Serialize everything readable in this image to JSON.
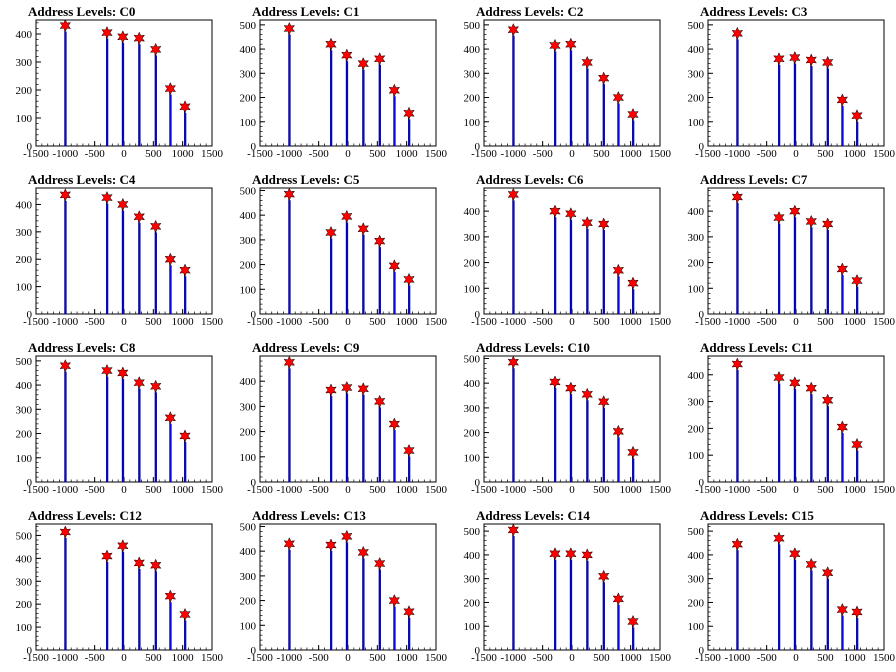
{
  "page": {
    "background": "#ffffff",
    "spike_color": "#0000ff",
    "marker_color": "#ff0000"
  },
  "chart_data": [
    {
      "type": "bar",
      "title": "Address Levels: C0",
      "xlim": [
        -1500,
        1500
      ],
      "ylim": [
        0,
        450
      ],
      "yticks": [
        0,
        100,
        200,
        300,
        400
      ],
      "xticks": [
        -1500,
        -1000,
        -500,
        0,
        500,
        1000,
        1500
      ],
      "xticklabels": [
        "-1500",
        "-1000",
        "-500",
        "0",
        "500",
        "1000",
        "1500"
      ],
      "peaks": [
        {
          "x": -1000,
          "y": 430
        },
        {
          "x": -290,
          "y": 405
        },
        {
          "x": -20,
          "y": 390
        },
        {
          "x": 260,
          "y": 385
        },
        {
          "x": 540,
          "y": 345
        },
        {
          "x": 790,
          "y": 205
        },
        {
          "x": 1040,
          "y": 140
        }
      ]
    },
    {
      "type": "bar",
      "title": "Address Levels: C1",
      "xlim": [
        -1500,
        1500
      ],
      "ylim": [
        0,
        520
      ],
      "yticks": [
        0,
        100,
        200,
        300,
        400,
        500
      ],
      "xticks": [
        -1500,
        -1000,
        -500,
        0,
        500,
        1000,
        1500
      ],
      "xticklabels": [
        "-1500",
        "-1000",
        "-500",
        "0",
        "500",
        "1000",
        "1500"
      ],
      "peaks": [
        {
          "x": -1000,
          "y": 485
        },
        {
          "x": -290,
          "y": 420
        },
        {
          "x": -20,
          "y": 375
        },
        {
          "x": 260,
          "y": 340
        },
        {
          "x": 540,
          "y": 360
        },
        {
          "x": 790,
          "y": 230
        },
        {
          "x": 1040,
          "y": 135
        }
      ]
    },
    {
      "type": "bar",
      "title": "Address Levels: C2",
      "xlim": [
        -1500,
        1500
      ],
      "ylim": [
        0,
        520
      ],
      "yticks": [
        0,
        100,
        200,
        300,
        400,
        500
      ],
      "xticks": [
        -1500,
        -1000,
        -500,
        0,
        500,
        1000,
        1500
      ],
      "xticklabels": [
        "-1500",
        "-1000",
        "-500",
        "0",
        "500",
        "1000",
        "1500"
      ],
      "peaks": [
        {
          "x": -1000,
          "y": 480
        },
        {
          "x": -290,
          "y": 415
        },
        {
          "x": -20,
          "y": 420
        },
        {
          "x": 260,
          "y": 345
        },
        {
          "x": 540,
          "y": 280
        },
        {
          "x": 790,
          "y": 200
        },
        {
          "x": 1040,
          "y": 130
        }
      ]
    },
    {
      "type": "bar",
      "title": "Address Levels: C3",
      "xlim": [
        -1500,
        1500
      ],
      "ylim": [
        0,
        520
      ],
      "yticks": [
        0,
        100,
        200,
        300,
        400,
        500
      ],
      "xticks": [
        -1500,
        -1000,
        -500,
        0,
        500,
        1000,
        1500
      ],
      "xticklabels": [
        "-1500",
        "-1000",
        "-500",
        "0",
        "500",
        "1000",
        "1500"
      ],
      "peaks": [
        {
          "x": -1000,
          "y": 465
        },
        {
          "x": -290,
          "y": 360
        },
        {
          "x": -20,
          "y": 365
        },
        {
          "x": 260,
          "y": 355
        },
        {
          "x": 540,
          "y": 345
        },
        {
          "x": 790,
          "y": 190
        },
        {
          "x": 1040,
          "y": 125
        }
      ]
    },
    {
      "type": "bar",
      "title": "Address Levels: C4",
      "xlim": [
        -1500,
        1500
      ],
      "ylim": [
        0,
        460
      ],
      "yticks": [
        0,
        100,
        200,
        300,
        400
      ],
      "xticks": [
        -1500,
        -1000,
        -500,
        0,
        500,
        1000,
        1500
      ],
      "xticklabels": [
        "-1500",
        "-1000",
        "-500",
        "0",
        "500",
        "1000",
        "1500"
      ],
      "peaks": [
        {
          "x": -1000,
          "y": 435
        },
        {
          "x": -290,
          "y": 425
        },
        {
          "x": -20,
          "y": 400
        },
        {
          "x": 260,
          "y": 355
        },
        {
          "x": 540,
          "y": 320
        },
        {
          "x": 790,
          "y": 200
        },
        {
          "x": 1040,
          "y": 160
        }
      ]
    },
    {
      "type": "bar",
      "title": "Address Levels: C5",
      "xlim": [
        -1500,
        1500
      ],
      "ylim": [
        0,
        510
      ],
      "yticks": [
        0,
        100,
        200,
        300,
        400,
        500
      ],
      "xticks": [
        -1500,
        -1000,
        -500,
        0,
        500,
        1000,
        1500
      ],
      "xticklabels": [
        "-1500",
        "-1000",
        "-500",
        "0",
        "500",
        "1000",
        "1500"
      ],
      "peaks": [
        {
          "x": -1000,
          "y": 485
        },
        {
          "x": -290,
          "y": 330
        },
        {
          "x": -20,
          "y": 395
        },
        {
          "x": 260,
          "y": 345
        },
        {
          "x": 540,
          "y": 295
        },
        {
          "x": 790,
          "y": 195
        },
        {
          "x": 1040,
          "y": 140
        }
      ]
    },
    {
      "type": "bar",
      "title": "Address Levels: C6",
      "xlim": [
        -1500,
        1500
      ],
      "ylim": [
        0,
        490
      ],
      "yticks": [
        0,
        100,
        200,
        300,
        400
      ],
      "xticks": [
        -1500,
        -1000,
        -500,
        0,
        500,
        1000,
        1500
      ],
      "xticklabels": [
        "-1500",
        "-1000",
        "-500",
        "0",
        "500",
        "1000",
        "1500"
      ],
      "peaks": [
        {
          "x": -1000,
          "y": 465
        },
        {
          "x": -290,
          "y": 400
        },
        {
          "x": -20,
          "y": 390
        },
        {
          "x": 260,
          "y": 355
        },
        {
          "x": 540,
          "y": 350
        },
        {
          "x": 790,
          "y": 170
        },
        {
          "x": 1040,
          "y": 120
        }
      ]
    },
    {
      "type": "bar",
      "title": "Address Levels: C7",
      "xlim": [
        -1500,
        1500
      ],
      "ylim": [
        0,
        490
      ],
      "yticks": [
        0,
        100,
        200,
        300,
        400
      ],
      "xticks": [
        -1500,
        -1000,
        -500,
        0,
        500,
        1000,
        1500
      ],
      "xticklabels": [
        "-1500",
        "-1000",
        "-500",
        "0",
        "500",
        "1000",
        "1500"
      ],
      "peaks": [
        {
          "x": -1000,
          "y": 455
        },
        {
          "x": -290,
          "y": 375
        },
        {
          "x": -20,
          "y": 400
        },
        {
          "x": 260,
          "y": 360
        },
        {
          "x": 540,
          "y": 350
        },
        {
          "x": 790,
          "y": 175
        },
        {
          "x": 1040,
          "y": 130
        }
      ]
    },
    {
      "type": "bar",
      "title": "Address Levels: C8",
      "xlim": [
        -1500,
        1500
      ],
      "ylim": [
        0,
        520
      ],
      "yticks": [
        0,
        100,
        200,
        300,
        400,
        500
      ],
      "xticks": [
        -1500,
        -1000,
        -500,
        0,
        500,
        1000,
        1500
      ],
      "xticklabels": [
        "-1500",
        "-1000",
        "-500",
        "0",
        "500",
        "1000",
        "1500"
      ],
      "peaks": [
        {
          "x": -1000,
          "y": 480
        },
        {
          "x": -290,
          "y": 460
        },
        {
          "x": -20,
          "y": 450
        },
        {
          "x": 260,
          "y": 410
        },
        {
          "x": 540,
          "y": 395
        },
        {
          "x": 790,
          "y": 265
        },
        {
          "x": 1040,
          "y": 190
        }
      ]
    },
    {
      "type": "bar",
      "title": "Address Levels: C9",
      "xlim": [
        -1500,
        1500
      ],
      "ylim": [
        0,
        500
      ],
      "yticks": [
        0,
        100,
        200,
        300,
        400
      ],
      "xticks": [
        -1500,
        -1000,
        -500,
        0,
        500,
        1000,
        1500
      ],
      "xticklabels": [
        "-1500",
        "-1000",
        "-500",
        "0",
        "500",
        "1000",
        "1500"
      ],
      "peaks": [
        {
          "x": -1000,
          "y": 475
        },
        {
          "x": -290,
          "y": 365
        },
        {
          "x": -20,
          "y": 375
        },
        {
          "x": 260,
          "y": 370
        },
        {
          "x": 540,
          "y": 320
        },
        {
          "x": 790,
          "y": 230
        },
        {
          "x": 1040,
          "y": 125
        }
      ]
    },
    {
      "type": "bar",
      "title": "Address Levels: C10",
      "xlim": [
        -1500,
        1500
      ],
      "ylim": [
        0,
        510
      ],
      "yticks": [
        0,
        100,
        200,
        300,
        400,
        500
      ],
      "xticks": [
        -1500,
        -1000,
        -500,
        0,
        500,
        1000,
        1500
      ],
      "xticklabels": [
        "-1500",
        "-1000",
        "-500",
        "0",
        "500",
        "1000",
        "1500"
      ],
      "peaks": [
        {
          "x": -1000,
          "y": 485
        },
        {
          "x": -290,
          "y": 405
        },
        {
          "x": -20,
          "y": 380
        },
        {
          "x": 260,
          "y": 355
        },
        {
          "x": 540,
          "y": 325
        },
        {
          "x": 790,
          "y": 205
        },
        {
          "x": 1040,
          "y": 120
        }
      ]
    },
    {
      "type": "bar",
      "title": "Address Levels: C11",
      "xlim": [
        -1500,
        1500
      ],
      "ylim": [
        0,
        470
      ],
      "yticks": [
        0,
        100,
        200,
        300,
        400
      ],
      "xticks": [
        -1500,
        -1000,
        -500,
        0,
        500,
        1000,
        1500
      ],
      "xticklabels": [
        "-1500",
        "-1000",
        "-500",
        "0",
        "500",
        "1000",
        "1500"
      ],
      "peaks": [
        {
          "x": -1000,
          "y": 440
        },
        {
          "x": -290,
          "y": 390
        },
        {
          "x": -20,
          "y": 370
        },
        {
          "x": 260,
          "y": 350
        },
        {
          "x": 540,
          "y": 305
        },
        {
          "x": 790,
          "y": 205
        },
        {
          "x": 1040,
          "y": 140
        }
      ]
    },
    {
      "type": "bar",
      "title": "Address Levels: C12",
      "xlim": [
        -1500,
        1500
      ],
      "ylim": [
        0,
        550
      ],
      "yticks": [
        0,
        100,
        200,
        300,
        400,
        500
      ],
      "xticks": [
        -1500,
        -1000,
        -500,
        0,
        500,
        1000,
        1500
      ],
      "xticklabels": [
        "-1500",
        "-1000",
        "-500",
        "0",
        "500",
        "1000",
        "1500"
      ],
      "peaks": [
        {
          "x": -1000,
          "y": 515
        },
        {
          "x": -290,
          "y": 410
        },
        {
          "x": -20,
          "y": 455
        },
        {
          "x": 260,
          "y": 380
        },
        {
          "x": 540,
          "y": 370
        },
        {
          "x": 790,
          "y": 235
        },
        {
          "x": 1040,
          "y": 155
        }
      ]
    },
    {
      "type": "bar",
      "title": "Address Levels: C13",
      "xlim": [
        -1500,
        1500
      ],
      "ylim": [
        0,
        510
      ],
      "yticks": [
        0,
        100,
        200,
        300,
        400,
        500
      ],
      "xticks": [
        -1500,
        -1000,
        -500,
        0,
        500,
        1000,
        1500
      ],
      "xticklabels": [
        "-1500",
        "-1000",
        "-500",
        "0",
        "500",
        "1000",
        "1500"
      ],
      "peaks": [
        {
          "x": -1000,
          "y": 430
        },
        {
          "x": -290,
          "y": 425
        },
        {
          "x": -20,
          "y": 460
        },
        {
          "x": 260,
          "y": 395
        },
        {
          "x": 540,
          "y": 350
        },
        {
          "x": 790,
          "y": 200
        },
        {
          "x": 1040,
          "y": 155
        }
      ]
    },
    {
      "type": "bar",
      "title": "Address Levels: C14",
      "xlim": [
        -1500,
        1500
      ],
      "ylim": [
        0,
        530
      ],
      "yticks": [
        0,
        100,
        200,
        300,
        400,
        500
      ],
      "xticks": [
        -1500,
        -1000,
        -500,
        0,
        500,
        1000,
        1500
      ],
      "xticklabels": [
        "-1500",
        "-1000",
        "-500",
        "0",
        "500",
        "1000",
        "1500"
      ],
      "peaks": [
        {
          "x": -1000,
          "y": 505
        },
        {
          "x": -290,
          "y": 405
        },
        {
          "x": -20,
          "y": 405
        },
        {
          "x": 260,
          "y": 400
        },
        {
          "x": 540,
          "y": 310
        },
        {
          "x": 790,
          "y": 215
        },
        {
          "x": 1040,
          "y": 120
        }
      ]
    },
    {
      "type": "bar",
      "title": "Address Levels: C15",
      "xlim": [
        -1500,
        1500
      ],
      "ylim": [
        0,
        530
      ],
      "yticks": [
        0,
        100,
        200,
        300,
        400,
        500
      ],
      "xticks": [
        -1500,
        -1000,
        -500,
        0,
        500,
        1000,
        1500
      ],
      "xticklabels": [
        "-1500",
        "-1000",
        "-500",
        "0",
        "500",
        "1000",
        "1500"
      ],
      "peaks": [
        {
          "x": -1000,
          "y": 445
        },
        {
          "x": -290,
          "y": 470
        },
        {
          "x": -20,
          "y": 405
        },
        {
          "x": 260,
          "y": 360
        },
        {
          "x": 540,
          "y": 325
        },
        {
          "x": 790,
          "y": 170
        },
        {
          "x": 1040,
          "y": 160
        }
      ]
    }
  ]
}
